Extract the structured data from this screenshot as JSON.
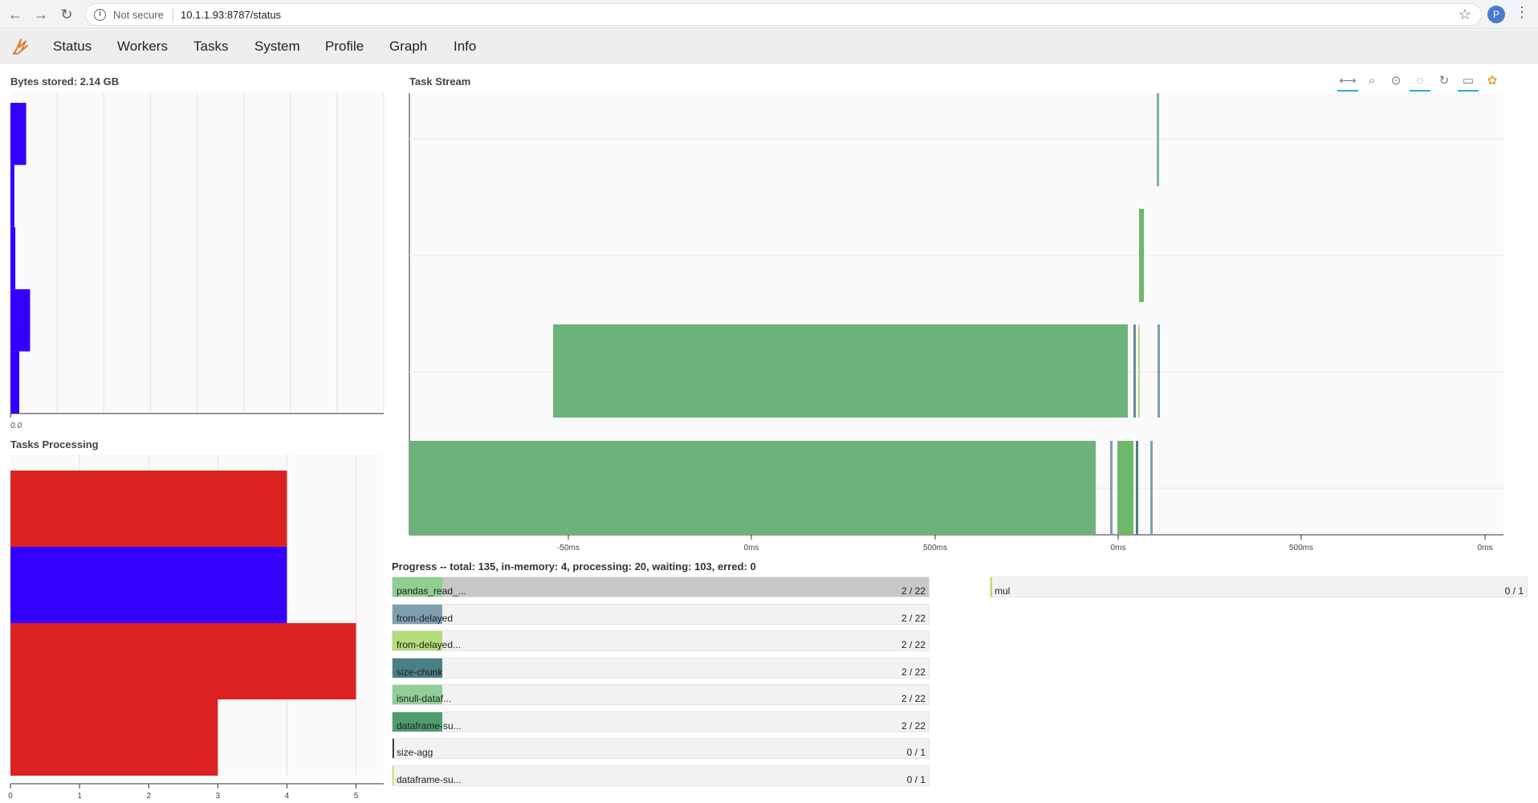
{
  "browser": {
    "back_icon": "back-arrow-icon",
    "forward_icon": "forward-arrow-icon",
    "reload_icon": "reload-icon",
    "security_label": "Not secure",
    "url": "10.1.1.93:8787/status",
    "profile_initial": "P"
  },
  "nav": {
    "tabs": [
      {
        "label": "Status"
      },
      {
        "label": "Workers"
      },
      {
        "label": "Tasks"
      },
      {
        "label": "System"
      },
      {
        "label": "Profile"
      },
      {
        "label": "Graph"
      },
      {
        "label": "Info"
      }
    ]
  },
  "bytes_stored": {
    "title": "Bytes stored: 2.14 GB",
    "tick_label": "0.0",
    "color": "#3300ff",
    "values": [
      0.08,
      0.02,
      0.025,
      0.1,
      0.045
    ],
    "xmax": 1.9
  },
  "tasks_processing": {
    "title": "Tasks Processing",
    "ticks": [
      "0",
      "1",
      "2",
      "3",
      "4",
      "5"
    ],
    "xmax": 5.4,
    "bars": [
      {
        "value": 4,
        "color": "#dd2222"
      },
      {
        "value": 4,
        "color": "#3300ff"
      },
      {
        "value": 5,
        "color": "#dd2222"
      },
      {
        "value": 3,
        "color": "#dd2222"
      }
    ]
  },
  "task_stream": {
    "title": "Task Stream",
    "x_ticks": [
      "-50ms",
      "0ms",
      "500ms",
      "0ms",
      "500ms",
      "0ms"
    ],
    "tools": [
      "pan-icon",
      "box-zoom-icon",
      "wheel-zoom-icon",
      "reset-zoom-icon",
      "refresh-icon",
      "hover-icon",
      "bokeh-logo-icon"
    ]
  },
  "progress": {
    "summary": "Progress -- total: 135, in-memory: 4, processing: 20, waiting: 103, erred: 0",
    "items": [
      {
        "name": "pandas_read_...",
        "count": "2 / 22",
        "done": 2,
        "processing": 20,
        "total": 22,
        "color": "#8fcf8f"
      },
      {
        "name": "from-delayed",
        "count": "2 / 22",
        "done": 2,
        "processing": 0,
        "total": 22,
        "color": "#7f9faf"
      },
      {
        "name": "from-delayed...",
        "count": "2 / 22",
        "done": 2,
        "processing": 0,
        "total": 22,
        "color": "#b5dd7a"
      },
      {
        "name": "size-chunk",
        "count": "2 / 22",
        "done": 2,
        "processing": 0,
        "total": 22,
        "color": "#4a7f86"
      },
      {
        "name": "isnull-dataf...",
        "count": "2 / 22",
        "done": 2,
        "processing": 0,
        "total": 22,
        "color": "#91cf96"
      },
      {
        "name": "dataframe-su...",
        "count": "2 / 22",
        "done": 2,
        "processing": 0,
        "total": 22,
        "color": "#4f9c6e"
      },
      {
        "name": "size-agg",
        "count": "0 / 1",
        "done": 0,
        "processing": 0,
        "total": 1,
        "color": "#444444"
      },
      {
        "name": "dataframe-su...",
        "count": "0 / 1",
        "done": 0,
        "processing": 0,
        "total": 1,
        "color": "#dddd88"
      },
      {
        "name": "mul",
        "count": "0 / 1",
        "done": 0,
        "processing": 0,
        "total": 1,
        "color": "#c3dd55"
      }
    ]
  }
}
